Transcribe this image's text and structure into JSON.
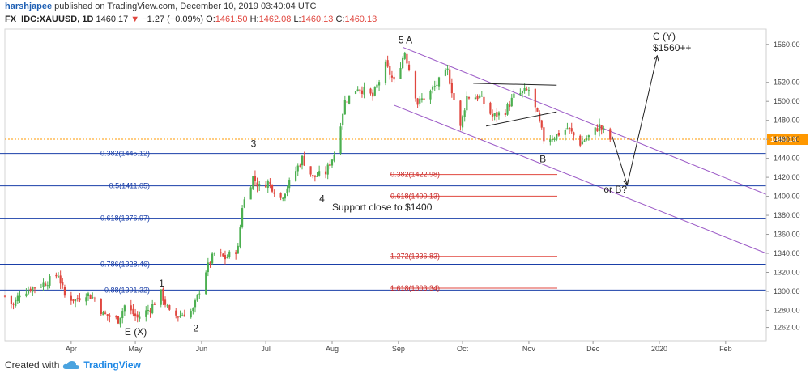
{
  "header": {
    "user": "harshjapee",
    "published_text": "published on TradingView.com, December 10, 2019 03:40:04 UTC",
    "symbol": "FX_IDC:XAUUSD, 1D",
    "last": "1460.17",
    "change_arrow": "▼",
    "change": "−1.27 (−0.09%)",
    "o_label": "O:",
    "o_value": "1461.50",
    "h_label": "H:",
    "h_value": "1462.08",
    "l_label": "L:",
    "l_value": "1460.13",
    "c_label": "C:",
    "c_value": "1460.13"
  },
  "footer": {
    "created_with": "Created with",
    "brand": "TradingView"
  },
  "colors": {
    "up": "#4caf50",
    "down": "#e0473f",
    "fib": "#1a3fa8",
    "ext": "#e0473f",
    "channel": "#9c5bc7",
    "price_line": "#ff9800"
  },
  "chart_data": {
    "type": "candlestick",
    "ylim": [
      1248,
      1576
    ],
    "y_ticks": [
      1262,
      1280,
      1300,
      1320,
      1340,
      1360,
      1380,
      1400,
      1420,
      1440,
      1460,
      1480,
      1500,
      1520,
      1560
    ],
    "x_ticks": [
      {
        "label": "Apr",
        "date": "2019-04-01"
      },
      {
        "label": "May",
        "date": "2019-05-01"
      },
      {
        "label": "Jun",
        "date": "2019-06-01"
      },
      {
        "label": "Jul",
        "date": "2019-07-01"
      },
      {
        "label": "Aug",
        "date": "2019-08-01"
      },
      {
        "label": "Sep",
        "date": "2019-09-01"
      },
      {
        "label": "Oct",
        "date": "2019-10-01"
      },
      {
        "label": "Nov",
        "date": "2019-11-01"
      },
      {
        "label": "Dec",
        "date": "2019-12-01"
      },
      {
        "label": "2020",
        "date": "2020-01-01"
      },
      {
        "label": "Feb",
        "date": "2020-02-01"
      }
    ],
    "xlim": [
      "2019-03-01",
      "2020-02-20"
    ],
    "current_price": {
      "value": 1460.13,
      "label": "1460.13"
    },
    "path_close": [
      {
        "date": "2019-03-01",
        "close": 1295
      },
      {
        "date": "2019-03-05",
        "close": 1285
      },
      {
        "date": "2019-03-08",
        "close": 1298
      },
      {
        "date": "2019-03-12",
        "close": 1302
      },
      {
        "date": "2019-03-15",
        "close": 1305
      },
      {
        "date": "2019-03-19",
        "close": 1308
      },
      {
        "date": "2019-03-22",
        "close": 1312
      },
      {
        "date": "2019-03-26",
        "close": 1318
      },
      {
        "date": "2019-03-29",
        "close": 1295
      },
      {
        "date": "2019-04-03",
        "close": 1291
      },
      {
        "date": "2019-04-08",
        "close": 1298
      },
      {
        "date": "2019-04-12",
        "close": 1292
      },
      {
        "date": "2019-04-16",
        "close": 1276
      },
      {
        "date": "2019-04-23",
        "close": 1270
      },
      {
        "date": "2019-04-26",
        "close": 1285
      },
      {
        "date": "2019-05-02",
        "close": 1272
      },
      {
        "date": "2019-05-08",
        "close": 1282
      },
      {
        "date": "2019-05-13",
        "close": 1298
      },
      {
        "date": "2019-05-17",
        "close": 1277
      },
      {
        "date": "2019-05-21",
        "close": 1274
      },
      {
        "date": "2019-05-28",
        "close": 1280
      },
      {
        "date": "2019-06-03",
        "close": 1322
      },
      {
        "date": "2019-06-07",
        "close": 1340
      },
      {
        "date": "2019-06-12",
        "close": 1335
      },
      {
        "date": "2019-06-18",
        "close": 1345
      },
      {
        "date": "2019-06-20",
        "close": 1390
      },
      {
        "date": "2019-06-25",
        "close": 1420
      },
      {
        "date": "2019-06-28",
        "close": 1410
      },
      {
        "date": "2019-07-02",
        "close": 1415
      },
      {
        "date": "2019-07-08",
        "close": 1398
      },
      {
        "date": "2019-07-12",
        "close": 1414
      },
      {
        "date": "2019-07-18",
        "close": 1440
      },
      {
        "date": "2019-07-23",
        "close": 1420
      },
      {
        "date": "2019-07-29",
        "close": 1425
      },
      {
        "date": "2019-08-02",
        "close": 1445
      },
      {
        "date": "2019-08-07",
        "close": 1500
      },
      {
        "date": "2019-08-13",
        "close": 1515
      },
      {
        "date": "2019-08-20",
        "close": 1505
      },
      {
        "date": "2019-08-26",
        "close": 1538
      },
      {
        "date": "2019-08-30",
        "close": 1520
      },
      {
        "date": "2019-09-04",
        "close": 1552
      },
      {
        "date": "2019-09-10",
        "close": 1498
      },
      {
        "date": "2019-09-16",
        "close": 1510
      },
      {
        "date": "2019-09-24",
        "close": 1532
      },
      {
        "date": "2019-09-30",
        "close": 1472
      },
      {
        "date": "2019-10-03",
        "close": 1505
      },
      {
        "date": "2019-10-09",
        "close": 1505
      },
      {
        "date": "2019-10-15",
        "close": 1484
      },
      {
        "date": "2019-10-21",
        "close": 1490
      },
      {
        "date": "2019-10-25",
        "close": 1505
      },
      {
        "date": "2019-11-01",
        "close": 1512
      },
      {
        "date": "2019-11-05",
        "close": 1485
      },
      {
        "date": "2019-11-08",
        "close": 1460
      },
      {
        "date": "2019-11-13",
        "close": 1463
      },
      {
        "date": "2019-11-19",
        "close": 1472
      },
      {
        "date": "2019-11-25",
        "close": 1456
      },
      {
        "date": "2019-11-29",
        "close": 1463
      },
      {
        "date": "2019-12-04",
        "close": 1474
      },
      {
        "date": "2019-12-09",
        "close": 1460
      }
    ],
    "fib_retracement": [
      {
        "label": "0.382(1445.12)",
        "value": 1445.12
      },
      {
        "label": "0.5(1411.05)",
        "value": 1411.05
      },
      {
        "label": "0.618(1376.97)",
        "value": 1376.97
      },
      {
        "label": "0.786(1328.46)",
        "value": 1328.46
      },
      {
        "label": "0.88(1301.32)",
        "value": 1301.32
      }
    ],
    "fib_extension": [
      {
        "label": "0.382(1422.98)",
        "value": 1422.98
      },
      {
        "label": "0.618(1400.13)",
        "value": 1400.13
      },
      {
        "label": "1.272(1336.83)",
        "value": 1336.83
      },
      {
        "label": "1.618(1303.34)",
        "value": 1303.34
      }
    ],
    "annotations": [
      {
        "text": "5 A",
        "date": "2019-09-01",
        "price": 1561
      },
      {
        "text": "3",
        "date": "2019-06-24",
        "price": 1452
      },
      {
        "text": "4",
        "date": "2019-07-26",
        "price": 1394
      },
      {
        "text": "Support close to $1400",
        "date": "2019-08-01",
        "price": 1385
      },
      {
        "text": "1",
        "date": "2019-05-12",
        "price": 1305
      },
      {
        "text": "2",
        "date": "2019-05-28",
        "price": 1258
      },
      {
        "text": "E (X)",
        "date": "2019-04-26",
        "price": 1254
      },
      {
        "text": "B",
        "date": "2019-11-06",
        "price": 1436
      },
      {
        "text": "or B?",
        "date": "2019-12-06",
        "price": 1404
      },
      {
        "text": "C (Y)",
        "date": "2019-12-29",
        "price": 1565
      },
      {
        "text": "$1560++",
        "date": "2019-12-29",
        "price": 1553
      }
    ],
    "channel": [
      {
        "from": {
          "date": "2019-09-03",
          "price": 1557
        },
        "to": {
          "date": "2020-02-20",
          "price": 1402
        }
      },
      {
        "from": {
          "date": "2019-08-30",
          "price": 1496
        },
        "to": {
          "date": "2020-02-20",
          "price": 1340
        }
      }
    ],
    "triangle": [
      {
        "from": {
          "date": "2019-10-06",
          "price": 1519
        },
        "to": {
          "date": "2019-11-14",
          "price": 1517
        }
      },
      {
        "from": {
          "date": "2019-10-12",
          "price": 1474
        },
        "to": {
          "date": "2019-11-14",
          "price": 1489
        }
      }
    ],
    "projection": [
      {
        "date": "2019-12-10",
        "price": 1463
      },
      {
        "date": "2019-12-17",
        "price": 1412
      },
      {
        "date": "2019-12-31",
        "price": 1548
      }
    ]
  }
}
